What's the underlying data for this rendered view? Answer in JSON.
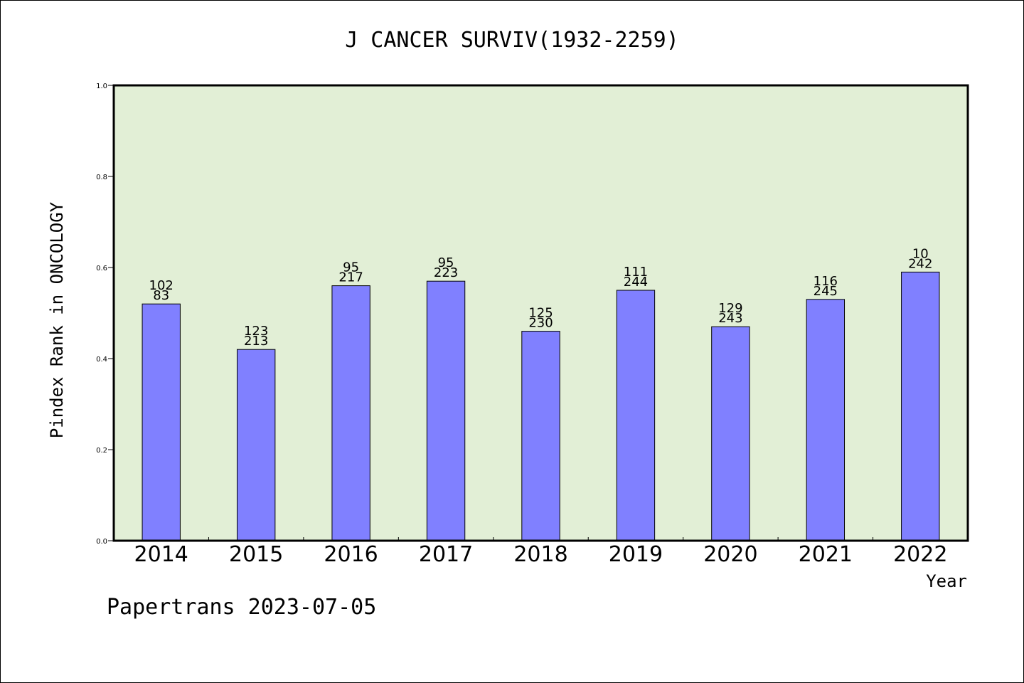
{
  "chart_data": {
    "type": "bar",
    "title": "J CANCER SURVIV(1932-2259)",
    "ylabel": "Pindex Rank in ONCOLOGY",
    "xlabel": "Year",
    "ylim": [
      0,
      1.0
    ],
    "yticks": [
      "0.0",
      "0.2",
      "0.4",
      "0.6",
      "0.8",
      "1.0"
    ],
    "categories": [
      "2014",
      "2015",
      "2016",
      "2017",
      "2018",
      "2019",
      "2020",
      "2021",
      "2022"
    ],
    "values": [
      0.52,
      0.42,
      0.56,
      0.57,
      0.46,
      0.55,
      0.47,
      0.53,
      0.59
    ],
    "labels_top": [
      "102",
      "123",
      "95",
      "95",
      "125",
      "111",
      "129",
      "116",
      "10"
    ],
    "labels_bottom": [
      "83",
      "213",
      "217",
      "223",
      "230",
      "244",
      "243",
      "245",
      "242"
    ],
    "grid": false,
    "legend": "none",
    "colors": {
      "plot_bg": "#e2efd6",
      "bar": "#8080ff",
      "bar_edge": "#000000"
    }
  },
  "footer": "Papertrans 2023-07-05"
}
